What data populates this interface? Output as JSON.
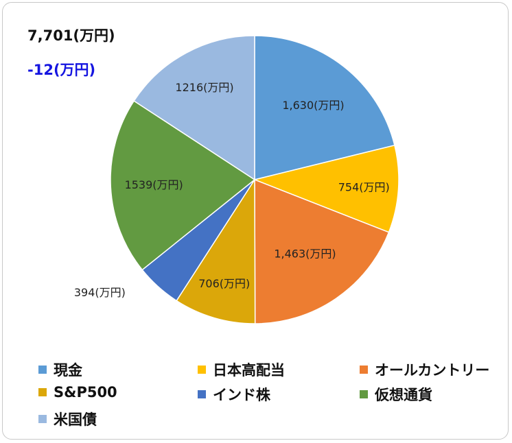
{
  "summary": {
    "total": "7,701(万円)",
    "change": "-12(万円)",
    "change_color": "#1515e0"
  },
  "chart_data": {
    "type": "pie",
    "start_angle": "top",
    "direction": "clockwise",
    "unit": "(万円)",
    "legend_position": "bottom",
    "slices": [
      {
        "name": "現金",
        "value": 1630,
        "label": "1,630(万円)",
        "color": "#5b9bd5"
      },
      {
        "name": "日本高配当",
        "value": 754,
        "label": "754(万円)",
        "color": "#ffc000"
      },
      {
        "name": "オールカントリー",
        "value": 1463,
        "label": "1,463(万円)",
        "color": "#ed7d31"
      },
      {
        "name": "S&P500",
        "value": 706,
        "label": "706(万円)",
        "color": "#dba70a"
      },
      {
        "name": "インド株",
        "value": 394,
        "label": "394(万円)",
        "color": "#4472c4"
      },
      {
        "name": "仮想通貨",
        "value": 1539,
        "label": "1539(万円)",
        "color": "#629a41"
      },
      {
        "name": "米国債",
        "value": 1216,
        "label": "1216(万円)",
        "color": "#9ab9e0"
      }
    ]
  }
}
